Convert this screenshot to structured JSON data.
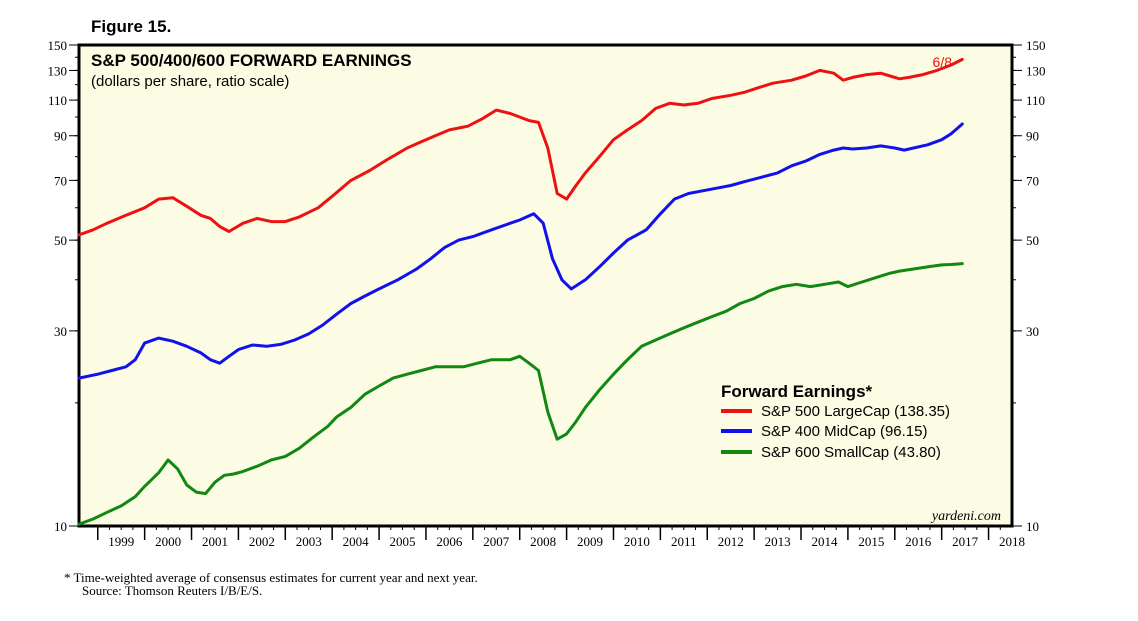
{
  "figure_label": "Figure 15.",
  "chart_data": {
    "type": "line",
    "title": "S&P 500/400/600 FORWARD EARNINGS",
    "subtitle": "(dollars per share, ratio scale)",
    "yscale": "log",
    "ylim": [
      10,
      150
    ],
    "yticks": [
      10,
      30,
      50,
      70,
      90,
      110,
      130,
      150
    ],
    "xlim": [
      1998.6,
      2018.5
    ],
    "xticks": [
      "1999",
      "2000",
      "2001",
      "2002",
      "2003",
      "2004",
      "2005",
      "2006",
      "2007",
      "2008",
      "2009",
      "2010",
      "2011",
      "2012",
      "2013",
      "2014",
      "2015",
      "2016",
      "2017",
      "2018"
    ],
    "end_label": "6/8",
    "legend_title": "Forward Earnings*",
    "legend_position": "lower-right",
    "watermark": "yardeni.com",
    "series": [
      {
        "name": "S&P 500 LargeCap (138.35)",
        "color": "#ee1111",
        "x": [
          1998.6,
          1998.9,
          1999.2,
          1999.6,
          2000.0,
          2000.3,
          2000.6,
          2000.9,
          2001.2,
          2001.4,
          2001.6,
          2001.8,
          2002.1,
          2002.4,
          2002.7,
          2003.0,
          2003.3,
          2003.7,
          2004.0,
          2004.4,
          2004.8,
          2005.2,
          2005.6,
          2005.9,
          2006.2,
          2006.5,
          2006.9,
          2007.2,
          2007.5,
          2007.8,
          2008.2,
          2008.4,
          2008.6,
          2008.8,
          2009.0,
          2009.2,
          2009.4,
          2009.7,
          2010.0,
          2010.3,
          2010.6,
          2010.9,
          2011.2,
          2011.5,
          2011.8,
          2012.1,
          2012.5,
          2012.8,
          2013.1,
          2013.4,
          2013.8,
          2014.1,
          2014.4,
          2014.7,
          2014.9,
          2015.1,
          2015.4,
          2015.7,
          2015.9,
          2016.1,
          2016.3,
          2016.6,
          2016.9,
          2017.2,
          2017.44
        ],
        "values": [
          51.5,
          53,
          55,
          57.5,
          60,
          63,
          63.5,
          60.5,
          57.5,
          56.5,
          54,
          52.5,
          55,
          56.5,
          55.5,
          55.5,
          57,
          60,
          64,
          70,
          74,
          79,
          84,
          87,
          90,
          93,
          95,
          99,
          104,
          102,
          98,
          97,
          84,
          65,
          63,
          68,
          73,
          80,
          88,
          93,
          98,
          105,
          108,
          107,
          108,
          111,
          113,
          115,
          118,
          121,
          123,
          126,
          130,
          128,
          123,
          125,
          127,
          128,
          126,
          124,
          125,
          127,
          130,
          134,
          138.35
        ]
      },
      {
        "name": "S&P 400 MidCap (96.15)",
        "color": "#1111ee",
        "x": [
          1998.6,
          1999.0,
          1999.3,
          1999.6,
          1999.8,
          2000.0,
          2000.3,
          2000.6,
          2000.9,
          2001.2,
          2001.4,
          2001.6,
          2001.8,
          2002.0,
          2002.3,
          2002.6,
          2002.9,
          2003.2,
          2003.5,
          2003.8,
          2004.1,
          2004.4,
          2004.7,
          2005.0,
          2005.4,
          2005.8,
          2006.1,
          2006.4,
          2006.7,
          2007.0,
          2007.4,
          2007.8,
          2008.0,
          2008.3,
          2008.5,
          2008.7,
          2008.9,
          2009.1,
          2009.4,
          2009.7,
          2010.0,
          2010.3,
          2010.7,
          2011.0,
          2011.3,
          2011.6,
          2011.9,
          2012.2,
          2012.5,
          2012.8,
          2013.1,
          2013.5,
          2013.8,
          2014.1,
          2014.4,
          2014.7,
          2014.9,
          2015.1,
          2015.4,
          2015.7,
          2016.0,
          2016.2,
          2016.4,
          2016.7,
          2017.0,
          2017.2,
          2017.44
        ],
        "values": [
          23,
          23.5,
          24,
          24.5,
          25.5,
          28,
          28.8,
          28.3,
          27.5,
          26.5,
          25.5,
          25,
          26,
          27,
          27.7,
          27.5,
          27.8,
          28.5,
          29.5,
          31,
          33,
          35,
          36.5,
          38,
          40,
          42.5,
          45,
          48,
          50,
          51,
          53,
          55,
          56,
          58,
          55,
          45,
          40,
          38,
          40,
          43,
          46.5,
          50,
          53,
          58,
          63,
          65,
          66,
          67,
          68,
          69.5,
          71,
          73,
          76,
          78,
          81,
          83,
          84,
          83.5,
          84,
          85,
          84,
          83,
          84,
          85.5,
          88,
          91,
          96.15
        ]
      },
      {
        "name": "S&P 600 SmallCap (43.80)",
        "color": "#118811",
        "x": [
          1998.6,
          1998.9,
          1999.2,
          1999.5,
          1999.8,
          2000.0,
          2000.3,
          2000.5,
          2000.7,
          2000.9,
          2001.1,
          2001.3,
          2001.5,
          2001.7,
          2001.9,
          2002.1,
          2002.4,
          2002.7,
          2003.0,
          2003.3,
          2003.6,
          2003.9,
          2004.1,
          2004.4,
          2004.7,
          2005.0,
          2005.3,
          2005.6,
          2005.9,
          2006.2,
          2006.5,
          2006.8,
          2007.1,
          2007.4,
          2007.8,
          2008.0,
          2008.2,
          2008.4,
          2008.6,
          2008.8,
          2009.0,
          2009.2,
          2009.4,
          2009.7,
          2010.0,
          2010.3,
          2010.6,
          2010.9,
          2011.2,
          2011.5,
          2011.8,
          2012.1,
          2012.4,
          2012.7,
          2013.0,
          2013.3,
          2013.6,
          2013.9,
          2014.2,
          2014.5,
          2014.8,
          2015.0,
          2015.3,
          2015.6,
          2015.9,
          2016.1,
          2016.4,
          2016.7,
          2017.0,
          2017.2,
          2017.44
        ],
        "values": [
          10.1,
          10.4,
          10.8,
          11.2,
          11.8,
          12.5,
          13.5,
          14.5,
          13.8,
          12.6,
          12.1,
          12.0,
          12.8,
          13.3,
          13.4,
          13.6,
          14,
          14.5,
          14.8,
          15.5,
          16.5,
          17.5,
          18.5,
          19.5,
          21,
          22,
          23,
          23.5,
          24,
          24.5,
          24.5,
          24.5,
          25,
          25.5,
          25.5,
          26,
          25,
          24,
          19,
          16.3,
          16.8,
          18,
          19.5,
          21.5,
          23.5,
          25.5,
          27.5,
          28.5,
          29.5,
          30.5,
          31.5,
          32.5,
          33.5,
          35,
          36,
          37.5,
          38.5,
          39,
          38.5,
          39,
          39.5,
          38.5,
          39.5,
          40.5,
          41.5,
          42,
          42.5,
          43,
          43.5,
          43.6,
          43.8
        ]
      }
    ]
  },
  "footnote": "*  Time-weighted average of consensus estimates for current year and next year.",
  "source": "Source: Thomson Reuters I/B/E/S.",
  "colors": {
    "plot_bg": "#fcfbe3",
    "frame": "#000000"
  }
}
